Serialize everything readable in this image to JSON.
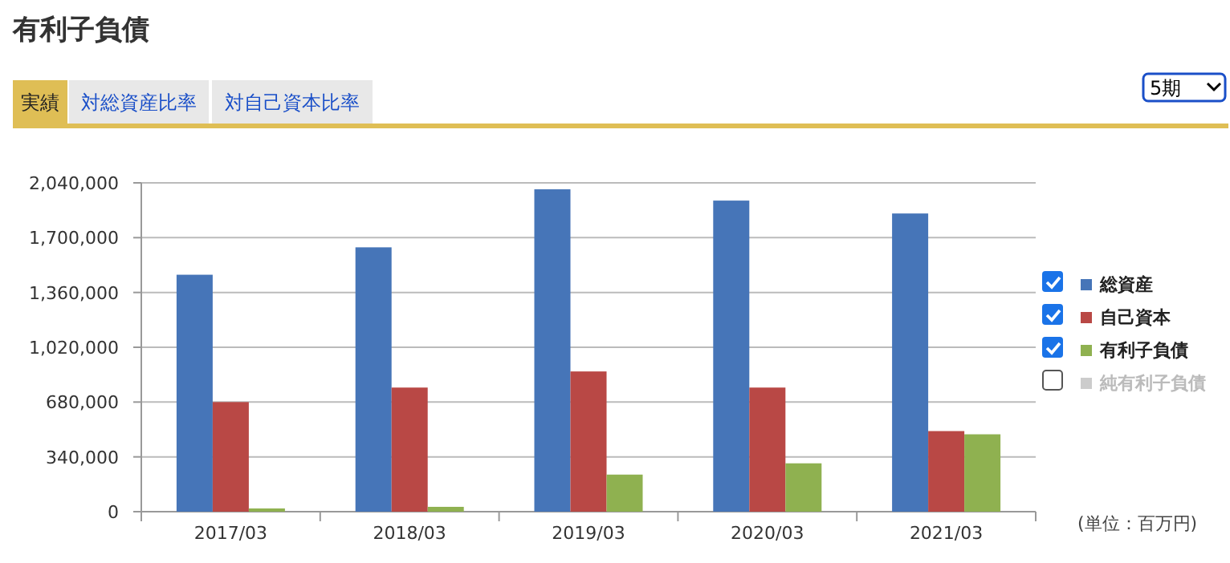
{
  "chart_data": {
    "type": "bar",
    "title": "有利子負債",
    "categories": [
      "2017/03",
      "2018/03",
      "2019/03",
      "2020/03",
      "2021/03"
    ],
    "series": [
      {
        "name": "総資産",
        "color": "#4675b8",
        "values": [
          1470000,
          1640000,
          2000000,
          1930000,
          1850000
        ]
      },
      {
        "name": "自己資本",
        "color": "#b94845",
        "values": [
          680000,
          770000,
          870000,
          770000,
          500000
        ]
      },
      {
        "name": "有利子負債",
        "color": "#8fb150",
        "values": [
          20000,
          30000,
          230000,
          300000,
          480000
        ]
      },
      {
        "name": "純有利子負債",
        "color": "#cccccc",
        "values": [
          null,
          null,
          null,
          null,
          null
        ]
      }
    ],
    "ylim": [
      0,
      2040000
    ],
    "yticks": [
      {
        "value": 0,
        "label": "0"
      },
      {
        "value": 340000,
        "label": "340,000"
      },
      {
        "value": 680000,
        "label": "680,000"
      },
      {
        "value": 1020000,
        "label": "1,020,000"
      },
      {
        "value": 1360000,
        "label": "1,360,000"
      },
      {
        "value": 1700000,
        "label": "1,700,000"
      },
      {
        "value": 2040000,
        "label": "2,040,000"
      }
    ],
    "grid": "y",
    "legend": "right",
    "annotations": [
      "実績",
      "対総資産比率",
      "対自己資本比率",
      "5期",
      "(単位：百万円)"
    ]
  }
}
